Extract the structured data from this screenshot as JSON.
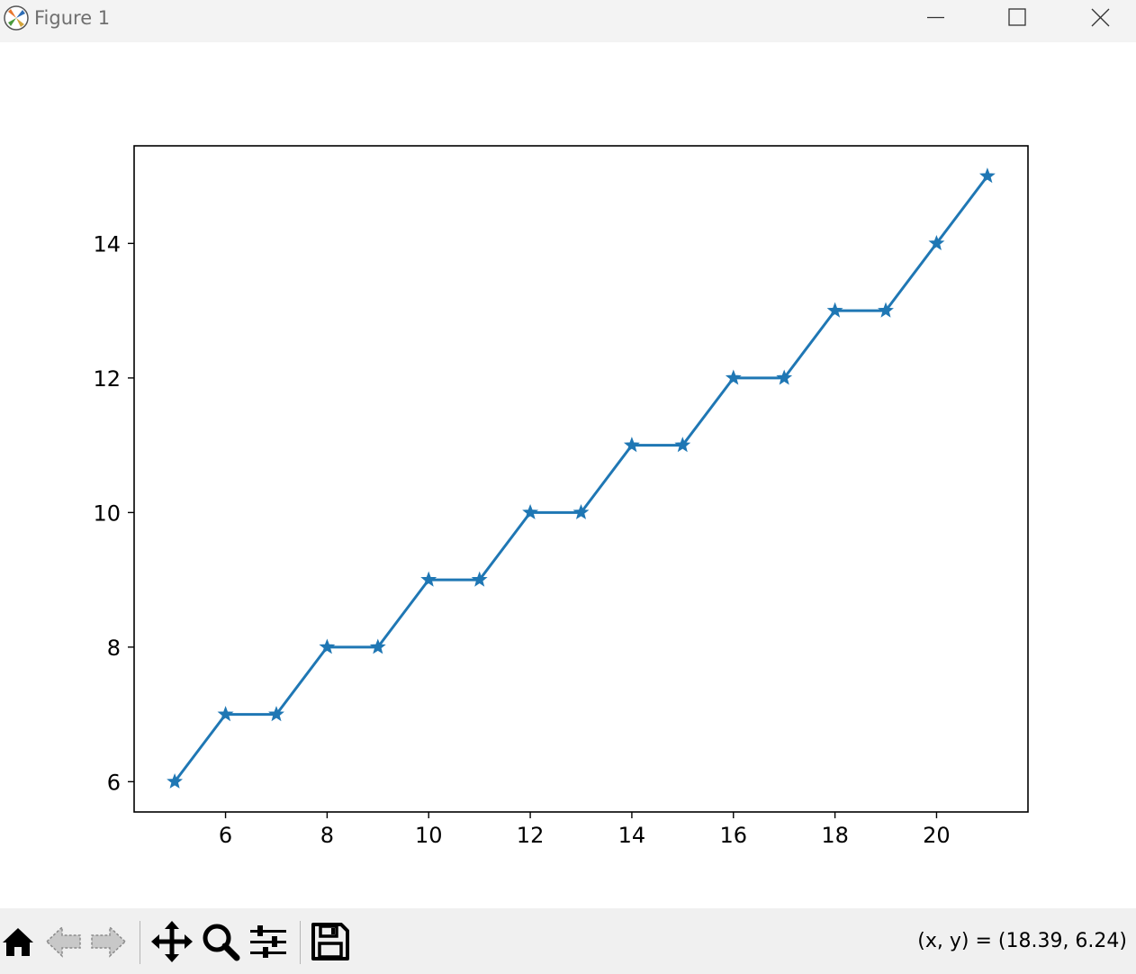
{
  "window": {
    "title": "Figure 1"
  },
  "toolbar": {
    "buttons": [
      "home-icon",
      "back-icon",
      "forward-icon",
      "pan-icon",
      "zoom-icon",
      "configure-subplots-icon",
      "save-icon"
    ],
    "coordinates": "(x, y) = (18.39, 6.24)"
  },
  "chart_data": {
    "type": "line",
    "marker": "star",
    "color": "#1f77b4",
    "grid": false,
    "xlim": [
      4.2,
      21.8
    ],
    "ylim": [
      5.55,
      15.45
    ],
    "x_ticks": [
      "6",
      "8",
      "10",
      "12",
      "14",
      "16",
      "18",
      "20"
    ],
    "y_ticks": [
      "6",
      "8",
      "10",
      "12",
      "14"
    ],
    "series": [
      {
        "x": [
          5,
          6,
          7,
          8,
          9,
          10,
          11,
          12,
          13,
          14,
          15,
          16,
          17,
          18,
          19,
          20,
          21
        ],
        "y": [
          6,
          7,
          7,
          8,
          8,
          9,
          9,
          10,
          10,
          11,
          11,
          12,
          12,
          13,
          13,
          14,
          15
        ]
      }
    ]
  }
}
